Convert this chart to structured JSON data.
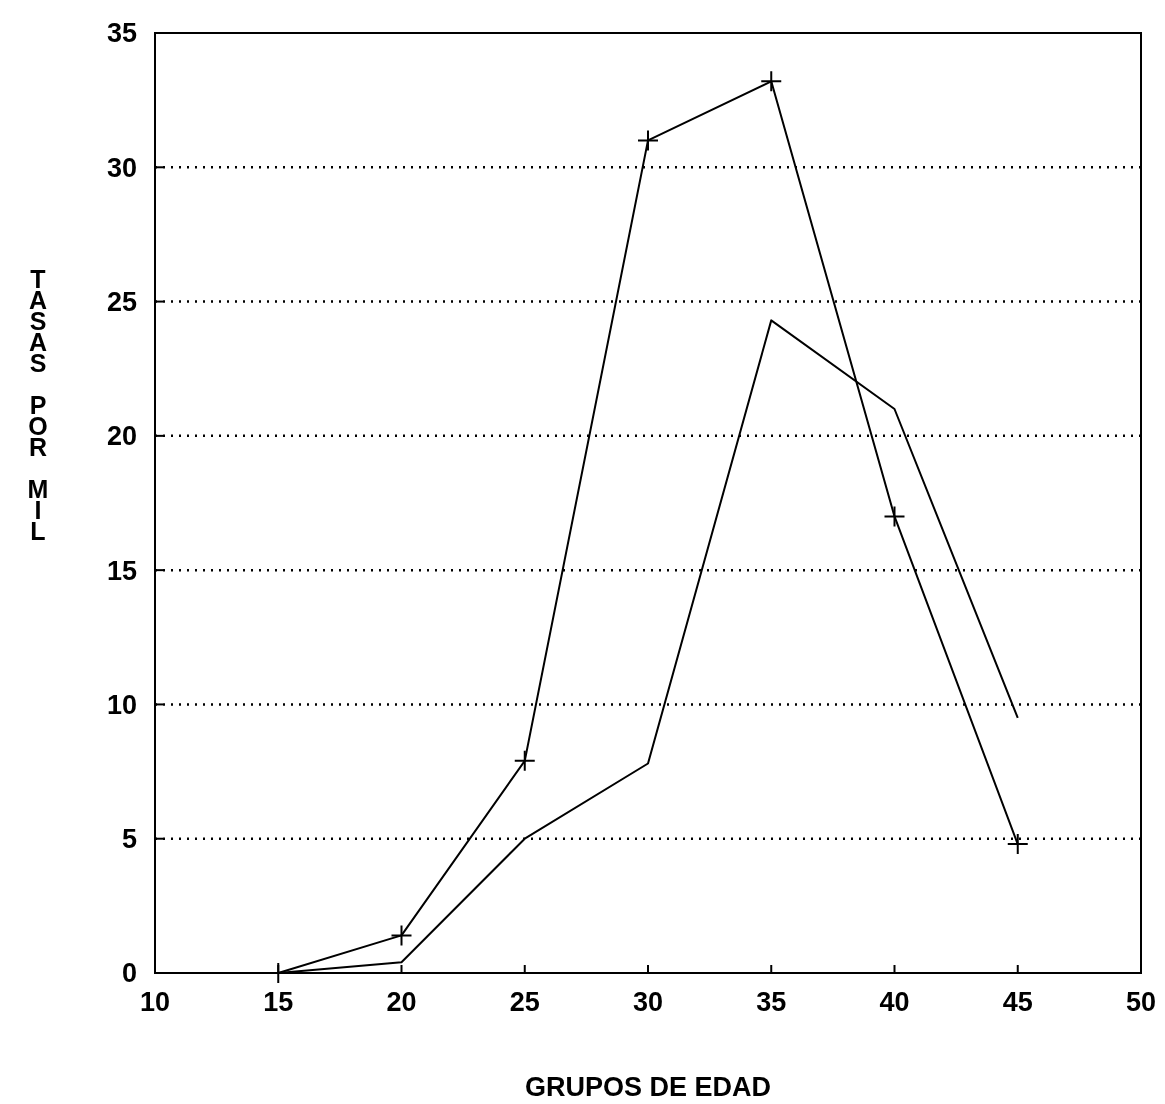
{
  "chart_data": {
    "type": "line",
    "xlabel": "GRUPOS DE EDAD",
    "ylabel": "TASAS POR MIL",
    "x": [
      15,
      20,
      25,
      30,
      35,
      40,
      45
    ],
    "series": [
      {
        "color": "#000000",
        "marker": "cross",
        "values": [
          0,
          1.4,
          7.9,
          31,
          33.2,
          17,
          4.8
        ]
      },
      {
        "color": "#000000",
        "marker": "none",
        "values": [
          0,
          0.4,
          5,
          7.8,
          24.3,
          21,
          9.5
        ]
      }
    ],
    "xlim": [
      10,
      50
    ],
    "xticks": [
      10,
      15,
      20,
      25,
      30,
      35,
      40,
      45,
      50
    ],
    "ylim": [
      0,
      35
    ],
    "yticks": [
      0,
      5,
      10,
      15,
      20,
      25,
      30,
      35
    ],
    "grid": "y",
    "line_style": "solid"
  }
}
